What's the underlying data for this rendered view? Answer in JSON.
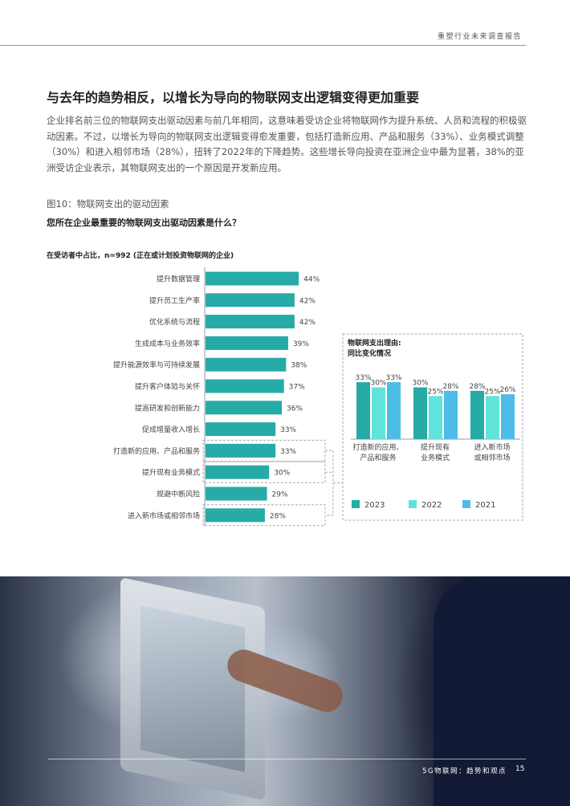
{
  "header": {
    "report_title": "重塑行业未来调查报告"
  },
  "section": {
    "title": "与去年的趋势相反，以增长为导向的物联网支出逻辑变得更加重要",
    "paragraph": "企业排名前三位的物联网支出驱动因素与前几年相同，这意味着受访企业将物联网作为提升系统、人员和流程的积极驱动因素。不过，以增长为导向的物联网支出逻辑变得愈发重要，包括打造新应用、产品和服务（33%）、业务模式调整（30%）和进入相邻市场（28%），扭转了2022年的下降趋势。这些增长导向投资在亚洲企业中最为显著，38%的亚洲受访企业表示，其物联网支出的一个原因是开发新应用。"
  },
  "figure": {
    "label": "图10：物联网支出的驱动因素",
    "question": "您所在企业最重要的物联网支出驱动因素是什么？",
    "subtitle": "在受访者中占比，n=992 (正在或计划投资物联网的企业)"
  },
  "chart_data": [
    {
      "type": "bar",
      "orientation": "horizontal",
      "categories": [
        "提升数据管理",
        "提升员工生产率",
        "优化系统与流程",
        "生成成本与业务效率",
        "提升能源效率与可持续发展",
        "提升客户体验与关怀",
        "提高研发和创新能力",
        "促成增量收入增长",
        "打造新的应用、产品和服务",
        "提升现有业务模式",
        "规避中断风险",
        "进入新市场或相邻市场"
      ],
      "values": [
        44,
        42,
        42,
        39,
        38,
        37,
        36,
        33,
        33,
        30,
        29,
        28
      ],
      "value_labels": [
        "44%",
        "42%",
        "42%",
        "39%",
        "38%",
        "37%",
        "36%",
        "33%",
        "33%",
        "30%",
        "29%",
        "28%"
      ],
      "highlighted": [
        8,
        9,
        11
      ],
      "color": "#26aba6",
      "unit": "%"
    },
    {
      "type": "bar",
      "title": "物联网支出理由:\n同比变化情况",
      "title_lines": [
        "物联网支出理由:",
        "同比变化情况"
      ],
      "categories": [
        "打造新的应用、\n产品和服务",
        "提升现有\n业务模式",
        "进入新市场\n或相邻市场"
      ],
      "category_lines": [
        [
          "打造新的应用、",
          "产品和服务"
        ],
        [
          "提升现有",
          "业务模式"
        ],
        [
          "进入新市场",
          "或相邻市场"
        ]
      ],
      "series": [
        {
          "name": "2023",
          "values": [
            33,
            30,
            28
          ],
          "labels": [
            "33%",
            "30%",
            "28%"
          ],
          "color": "#26aba6"
        },
        {
          "name": "2022",
          "values": [
            30,
            25,
            25
          ],
          "labels": [
            "30%",
            "25%",
            "25%"
          ],
          "color": "#5fe3db"
        },
        {
          "name": "2021",
          "values": [
            33,
            28,
            26
          ],
          "labels": [
            "33%",
            "28%",
            "26%"
          ],
          "color": "#4dbde8"
        }
      ],
      "legend": "bottom",
      "unit": "%"
    }
  ],
  "footer": {
    "publication": "5G物联网：趋势和观点",
    "page": "15"
  }
}
